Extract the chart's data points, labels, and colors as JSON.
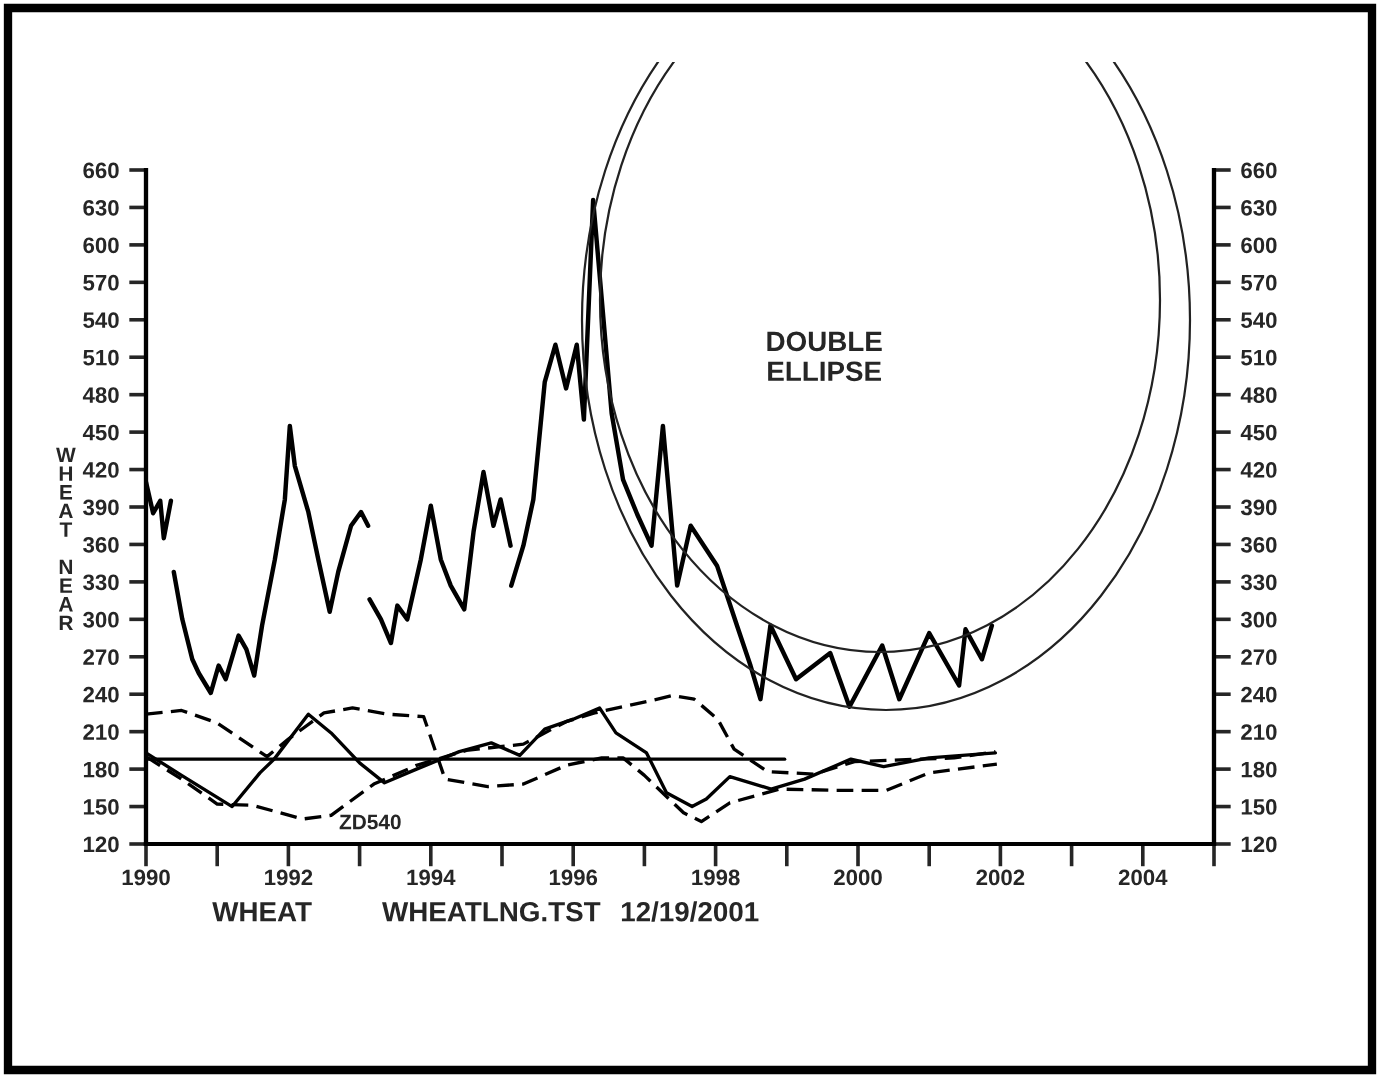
{
  "chart_data": {
    "type": "line",
    "ylabel": "WHEAT NEAR",
    "annotations": [
      "DOUBLE\nELLIPSE",
      "ZD540",
      "WHEAT",
      "WHEATLNG.TST",
      "12/19/2001"
    ],
    "xlim": [
      1990,
      2005
    ],
    "xticks": [
      1990,
      {
        "value": 1991,
        "label": null
      },
      1992,
      {
        "value": 1993,
        "label": null
      },
      1994,
      {
        "value": 1995,
        "label": null
      },
      1996,
      {
        "value": 1997,
        "label": null
      },
      1998,
      {
        "value": 1999,
        "label": null
      },
      2000,
      {
        "value": 2001,
        "label": null
      },
      2002,
      {
        "value": 2003,
        "label": null
      },
      2004,
      {
        "value": 2005,
        "label": null
      }
    ],
    "ylim": [
      120,
      660
    ],
    "yticks": [
      120,
      150,
      180,
      210,
      240,
      270,
      300,
      330,
      360,
      390,
      420,
      450,
      480,
      510,
      540,
      570,
      600,
      630,
      660
    ],
    "y2lim": [
      120,
      660
    ],
    "y2ticks": [
      120,
      150,
      180,
      210,
      240,
      270,
      300,
      330,
      360,
      390,
      420,
      450,
      480,
      510,
      540,
      570,
      600,
      630,
      660
    ],
    "grid": false,
    "legend": false,
    "marker": "none",
    "series": [
      {
        "color": "#000000",
        "line_style": "solid",
        "x": [
          1990.0,
          1990.1,
          1990.2,
          1990.25,
          1990.35,
          1990.37,
          1990.39,
          1990.51,
          1990.65,
          1990.74,
          1990.91,
          1991.02,
          1991.12,
          1991.3,
          1991.41,
          1991.52,
          1991.63,
          1991.81,
          1991.95,
          1992.02,
          1992.09,
          1992.28,
          1992.42,
          1992.58,
          1992.7,
          1992.88,
          1993.02,
          1993.12,
          1993.13,
          1993.14,
          1993.3,
          1993.44,
          1993.53,
          1993.67,
          1993.86,
          1994.0,
          1994.14,
          1994.28,
          1994.47,
          1994.6,
          1994.74,
          1994.88,
          1994.98,
          1995.12,
          1995.125,
          1995.13,
          1995.3,
          1995.44,
          1995.6,
          1995.75,
          1995.9,
          1996.05,
          1996.15,
          1996.28,
          1996.54,
          1996.7,
          1996.9,
          1997.1,
          1997.26,
          1997.46,
          1997.65,
          1998.02,
          1998.3,
          1998.49,
          1998.63,
          1998.77,
          1999.13,
          1999.61,
          1999.88,
          2000.34,
          2000.58,
          2001.0,
          2001.42,
          2001.51,
          2001.74,
          2001.88
        ],
        "values": [
          410,
          385,
          395,
          365,
          395,
          null,
          338,
          300,
          268,
          257,
          241,
          263,
          252,
          287,
          276,
          255,
          295,
          348,
          396,
          455,
          423,
          386,
          348,
          306,
          338,
          375,
          386,
          375,
          null,
          316,
          300,
          281,
          311,
          300,
          348,
          391,
          348,
          327,
          308,
          370,
          418,
          375,
          396,
          359,
          null,
          327,
          359,
          396,
          490,
          520,
          485,
          520,
          460,
          636,
          465,
          412,
          384,
          359,
          455,
          327,
          375,
          343,
          295,
          263,
          236,
          295,
          252,
          273,
          230,
          279,
          236,
          289,
          247,
          292,
          268,
          295
        ]
      },
      {
        "color": "#000000",
        "line_style": "solid",
        "x": [
          1990.0,
          1990.5,
          1991.21,
          1991.6,
          1991.8,
          1992.28,
          1992.6,
          1993.0,
          1993.35,
          1993.8,
          1994.4,
          1994.85,
          1995.25,
          1995.6,
          1996.0,
          1996.37,
          1996.6,
          1997.03,
          1997.31,
          1997.67,
          1997.87,
          1998.2,
          1998.78,
          1999.25,
          1999.9,
          2000.36,
          2001.0,
          2001.93
        ],
        "values": [
          193,
          175,
          150,
          177,
          188,
          224,
          209,
          185,
          169,
          180,
          194,
          201,
          191,
          212,
          220,
          229,
          209,
          193,
          161,
          150,
          156,
          174,
          164,
          172,
          188,
          182,
          189,
          193
        ]
      },
      {
        "color": "#000000",
        "line_style": "dashed",
        "x": [
          1990.0,
          1990.5,
          1991.0,
          1991.7,
          1992.0,
          1992.5,
          1992.9,
          1993.4,
          1993.9,
          1994.2,
          1994.8,
          1995.3,
          1995.9,
          1996.4,
          1996.7,
          1997.0,
          1997.55,
          1997.8,
          1998.2,
          1998.9,
          1999.7,
          2000.4,
          2001.0,
          2001.95
        ],
        "values": [
          224,
          227,
          217,
          190,
          204,
          225,
          229,
          224,
          222,
          172,
          166,
          168,
          183,
          189,
          189,
          175,
          145,
          138,
          153,
          164,
          163,
          163,
          177,
          184
        ]
      },
      {
        "color": "#000000",
        "line_style": "dashed",
        "x": [
          1990.0,
          1990.5,
          1991.0,
          1991.5,
          1992.2,
          1992.6,
          1993.2,
          1993.8,
          1994.5,
          1995.3,
          1995.9,
          1996.3,
          1996.54,
          1997.1,
          1997.4,
          1997.7,
          1998.03,
          1998.26,
          1998.73,
          1999.39,
          1999.95,
          2001.35,
          2001.93
        ],
        "values": [
          190,
          172,
          152,
          151,
          140,
          143,
          168,
          183,
          195,
          200,
          218,
          225,
          228,
          235,
          239,
          236,
          220,
          196,
          178,
          176,
          186,
          189,
          194
        ]
      },
      {
        "color": "#000000",
        "line_style": "solid",
        "x": [
          1990.0,
          1998.97
        ],
        "values": [
          188,
          188
        ]
      }
    ]
  }
}
